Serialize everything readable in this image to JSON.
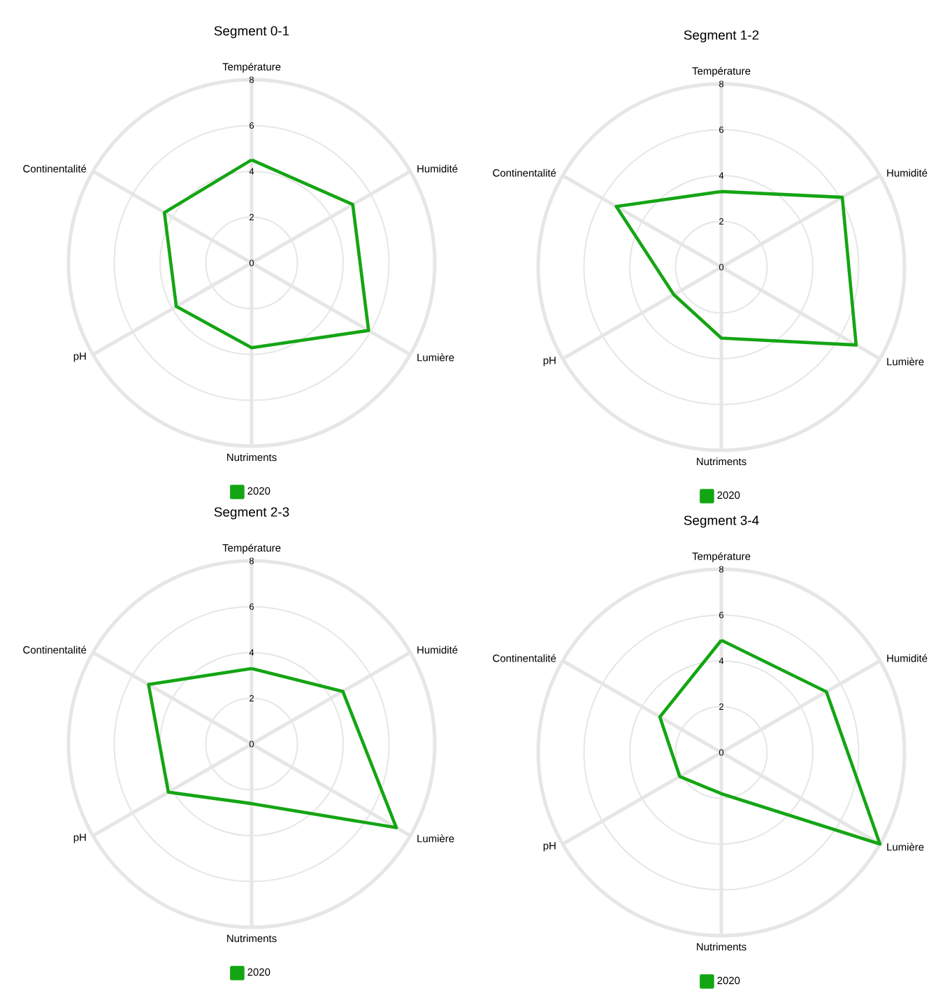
{
  "chart_data": [
    {
      "type": "radar",
      "title": "Segment 0-1",
      "categories": [
        "Température",
        "Humidité",
        "Lumière",
        "Nutriments",
        "pH",
        "Continentalité"
      ],
      "series": [
        {
          "name": "2020",
          "color": "#14a514",
          "values": [
            4.5,
            5.1,
            5.9,
            3.7,
            3.8,
            4.4
          ]
        }
      ],
      "ylim": [
        0,
        8
      ],
      "yticks": [
        0,
        2,
        4,
        6,
        8
      ],
      "grid": true,
      "legend": "bottom"
    },
    {
      "type": "radar",
      "title": "Segment 1-2",
      "categories": [
        "Température",
        "Humidité",
        "Lumière",
        "Nutriments",
        "pH",
        "Continentalité"
      ],
      "series": [
        {
          "name": "2020",
          "color": "#14a514",
          "values": [
            3.3,
            6.1,
            6.8,
            3.1,
            2.4,
            5.3
          ]
        }
      ],
      "ylim": [
        0,
        8
      ],
      "yticks": [
        0,
        2,
        4,
        6,
        8
      ],
      "grid": true,
      "legend": "bottom"
    },
    {
      "type": "radar",
      "title": "Segment 2-3",
      "categories": [
        "Température",
        "Humidité",
        "Lumière",
        "Nutriments",
        "pH",
        "Continentalité"
      ],
      "series": [
        {
          "name": "2020",
          "color": "#14a514",
          "values": [
            3.3,
            4.6,
            7.3,
            2.6,
            4.2,
            5.2
          ]
        }
      ],
      "ylim": [
        0,
        8
      ],
      "yticks": [
        0,
        2,
        4,
        6,
        8
      ],
      "grid": true,
      "legend": "bottom"
    },
    {
      "type": "radar",
      "title": "Segment 3-4",
      "categories": [
        "Température",
        "Humidité",
        "Lumière",
        "Nutriments",
        "pH",
        "Continentalité"
      ],
      "series": [
        {
          "name": "2020",
          "color": "#14a514",
          "values": [
            4.9,
            5.3,
            8.0,
            1.8,
            2.1,
            3.1
          ]
        }
      ],
      "ylim": [
        0,
        8
      ],
      "yticks": [
        0,
        2,
        4,
        6,
        8
      ],
      "grid": true,
      "legend": "bottom"
    }
  ]
}
